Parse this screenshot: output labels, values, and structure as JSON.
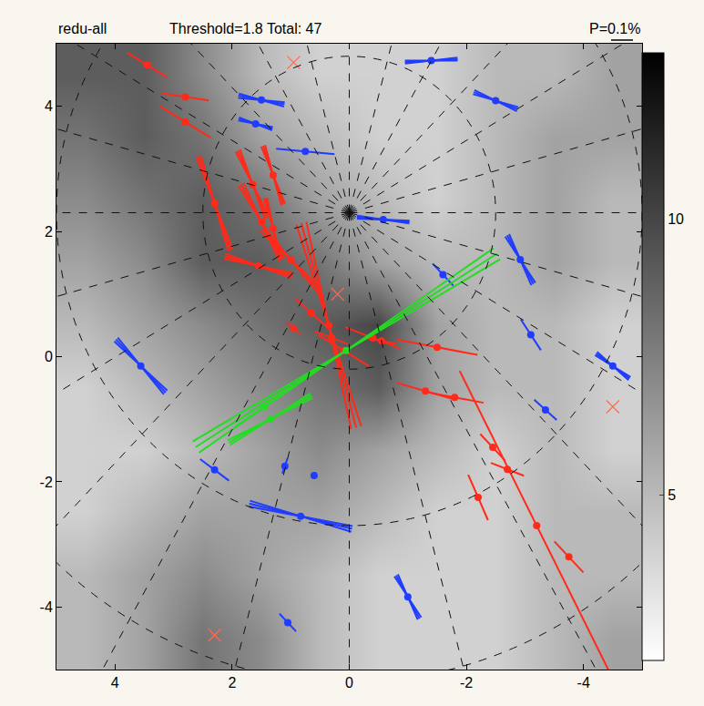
{
  "chart_data": {
    "type": "scatter",
    "title_parts": [
      "redu-all",
      "Threshold=1.8 Total: 47",
      "P=0.1%"
    ],
    "xlim": [
      5,
      -5
    ],
    "ylim": [
      -5,
      5
    ],
    "xticks": [
      4,
      2,
      0,
      -2,
      -4
    ],
    "yticks": [
      -4,
      -2,
      0,
      2,
      4
    ],
    "grid": true,
    "coordinate_grid": {
      "pole": [
        0,
        2.3
      ],
      "radii": [
        2.5,
        5.0,
        7.5
      ],
      "spokes": 24
    },
    "background": {
      "x": [
        4.5,
        3.5,
        2.5,
        1.5,
        0.5,
        -0.5,
        -1.5,
        -2.5,
        -3.5,
        -4.5
      ],
      "y": [
        -4.5,
        -3.5,
        -2.5,
        -1.5,
        -0.5,
        0.5,
        1.5,
        2.5,
        3.5,
        4.5
      ],
      "z": [
        [
          5,
          6,
          8,
          7,
          5,
          4,
          4,
          4,
          5,
          6
        ],
        [
          5,
          6,
          7,
          6,
          5,
          4,
          4,
          4,
          5,
          5
        ],
        [
          4,
          5,
          6,
          6,
          6,
          5,
          4,
          4,
          5,
          5
        ],
        [
          4,
          4,
          5,
          6,
          7,
          6,
          5,
          4,
          5,
          4
        ],
        [
          4,
          5,
          6,
          7,
          8,
          9,
          6,
          5,
          5,
          4
        ],
        [
          5,
          6,
          7,
          8,
          9,
          10,
          6,
          5,
          5,
          4
        ],
        [
          6,
          7,
          9,
          9,
          8,
          6,
          5,
          5,
          6,
          5
        ],
        [
          7,
          8,
          9,
          8,
          6,
          5,
          4,
          5,
          6,
          5
        ],
        [
          8,
          9,
          8,
          6,
          5,
          4,
          4,
          5,
          6,
          6
        ],
        [
          9,
          9,
          7,
          5,
          4,
          4,
          4,
          5,
          5,
          6
        ]
      ],
      "zlim": [
        2,
        13
      ],
      "zticks": [
        5,
        10
      ]
    },
    "series": [
      {
        "color": "#1f3cff",
        "x": [
          -1.4,
          1.5,
          1.6,
          0.75,
          -2.5,
          -0.58,
          -1.6,
          -2.92,
          -3.1,
          -3.35,
          -4.5,
          3.56,
          2.3,
          1.1,
          0.6,
          0.83,
          -1.0,
          1.05
        ],
        "y": [
          4.73,
          4.1,
          3.72,
          3.28,
          4.09,
          2.19,
          1.31,
          1.55,
          0.35,
          -0.85,
          -0.15,
          -0.15,
          -1.81,
          -1.75,
          -1.9,
          -2.55,
          -3.84,
          -4.25
        ],
        "length": [
          0.9,
          0.8,
          0.6,
          1.0,
          0.8,
          0.9,
          0.5,
          0.9,
          0.6,
          0.5,
          0.7,
          1.2,
          0.6,
          0.25,
          0.0,
          1.8,
          0.8,
          0.4
        ],
        "angle": [
          3,
          -10,
          -15,
          -5,
          -20,
          -5,
          -45,
          -60,
          -55,
          -40,
          -35,
          -45,
          -35,
          70,
          0,
          -13,
          -60,
          -45
        ],
        "angle_error": [
          3,
          5,
          5,
          0,
          5,
          3,
          0,
          5,
          0,
          0,
          5,
          4,
          0,
          0,
          0,
          3,
          5,
          0
        ]
      },
      {
        "color": "#ff2a1a",
        "x": [
          3.45,
          2.8,
          2.8,
          1.65,
          1.3,
          2.3,
          1.5,
          1.3,
          1.55,
          1.0,
          0.65,
          0.95,
          0.35,
          0.3,
          0.1,
          -0.4,
          -0.55,
          -1.5,
          -1.3,
          -1.8,
          -2.45,
          -2.7,
          -2.2,
          -3.2,
          -3.75
        ],
        "y": [
          4.66,
          4.15,
          3.75,
          2.75,
          2.9,
          2.45,
          2.15,
          2.05,
          1.45,
          1.55,
          0.7,
          0.45,
          0.5,
          0.3,
          0.1,
          0.3,
          0.25,
          0.15,
          -0.55,
          -0.65,
          -1.45,
          -1.8,
          -2.25,
          -2.7,
          -3.2
        ],
        "length": [
          0.8,
          0.8,
          1.0,
          1.2,
          1.0,
          1.6,
          1.4,
          1.0,
          1.2,
          1.4,
          0.7,
          0.3,
          3.4,
          0.6,
          1.0,
          1.0,
          0.5,
          1.4,
          1.0,
          1.0,
          0.6,
          0.6,
          0.8,
          5.6,
          0.7
        ],
        "angle": [
          -30,
          -8,
          -30,
          -65,
          -70,
          -70,
          -60,
          -75,
          -15,
          -45,
          -40,
          -40,
          -74,
          -20,
          -30,
          -20,
          -10,
          -10,
          -15,
          -10,
          -45,
          -20,
          -65,
          -62,
          -45
        ],
        "angle_error": [
          0,
          0,
          0,
          4,
          4,
          3,
          4,
          3,
          4,
          4,
          0,
          0,
          3,
          0,
          0,
          0,
          0,
          0,
          0,
          0,
          0,
          0,
          0,
          0,
          0
        ]
      },
      {
        "color": "#22dd22",
        "x": [
          0.05,
          1.45,
          1.35
        ],
        "y": [
          0.1,
          -0.8,
          -1.0
        ],
        "length": [
          6.0,
          1.2,
          1.6
        ],
        "angle": [
          31,
          33,
          28
        ],
        "angle_error": [
          2,
          0,
          3
        ]
      }
    ],
    "crosses": {
      "marker": "x",
      "color": "#ff6a50",
      "x": [
        0.95,
        -4.5,
        2.3,
        0.2
      ],
      "y": [
        4.7,
        -0.8,
        -4.45,
        1.0
      ]
    }
  }
}
